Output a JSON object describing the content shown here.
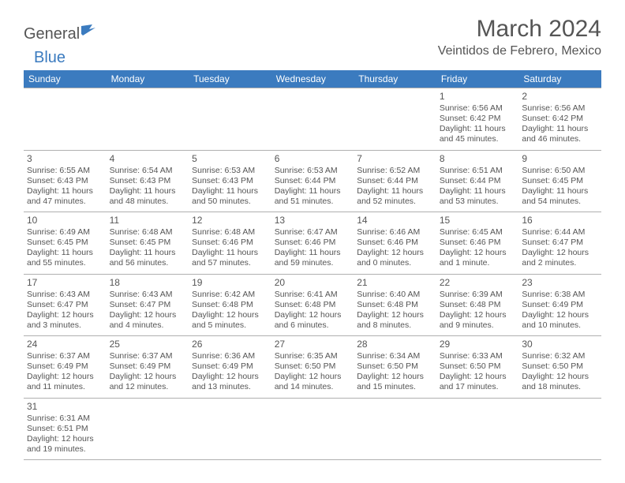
{
  "logo": {
    "part1": "General",
    "part2": "Blue"
  },
  "title": "March 2024",
  "location": "Veintidos de Febrero, Mexico",
  "colors": {
    "header_bg": "#3b7bbf",
    "header_text": "#ffffff",
    "body_text": "#555555",
    "border": "#b0b0b0",
    "background": "#ffffff",
    "logo_accent": "#3b7bbf"
  },
  "weekdays": [
    "Sunday",
    "Monday",
    "Tuesday",
    "Wednesday",
    "Thursday",
    "Friday",
    "Saturday"
  ],
  "weeks": [
    [
      null,
      null,
      null,
      null,
      null,
      {
        "day": "1",
        "sunrise": "Sunrise: 6:56 AM",
        "sunset": "Sunset: 6:42 PM",
        "daylight": "Daylight: 11 hours and 45 minutes."
      },
      {
        "day": "2",
        "sunrise": "Sunrise: 6:56 AM",
        "sunset": "Sunset: 6:42 PM",
        "daylight": "Daylight: 11 hours and 46 minutes."
      }
    ],
    [
      {
        "day": "3",
        "sunrise": "Sunrise: 6:55 AM",
        "sunset": "Sunset: 6:43 PM",
        "daylight": "Daylight: 11 hours and 47 minutes."
      },
      {
        "day": "4",
        "sunrise": "Sunrise: 6:54 AM",
        "sunset": "Sunset: 6:43 PM",
        "daylight": "Daylight: 11 hours and 48 minutes."
      },
      {
        "day": "5",
        "sunrise": "Sunrise: 6:53 AM",
        "sunset": "Sunset: 6:43 PM",
        "daylight": "Daylight: 11 hours and 50 minutes."
      },
      {
        "day": "6",
        "sunrise": "Sunrise: 6:53 AM",
        "sunset": "Sunset: 6:44 PM",
        "daylight": "Daylight: 11 hours and 51 minutes."
      },
      {
        "day": "7",
        "sunrise": "Sunrise: 6:52 AM",
        "sunset": "Sunset: 6:44 PM",
        "daylight": "Daylight: 11 hours and 52 minutes."
      },
      {
        "day": "8",
        "sunrise": "Sunrise: 6:51 AM",
        "sunset": "Sunset: 6:44 PM",
        "daylight": "Daylight: 11 hours and 53 minutes."
      },
      {
        "day": "9",
        "sunrise": "Sunrise: 6:50 AM",
        "sunset": "Sunset: 6:45 PM",
        "daylight": "Daylight: 11 hours and 54 minutes."
      }
    ],
    [
      {
        "day": "10",
        "sunrise": "Sunrise: 6:49 AM",
        "sunset": "Sunset: 6:45 PM",
        "daylight": "Daylight: 11 hours and 55 minutes."
      },
      {
        "day": "11",
        "sunrise": "Sunrise: 6:48 AM",
        "sunset": "Sunset: 6:45 PM",
        "daylight": "Daylight: 11 hours and 56 minutes."
      },
      {
        "day": "12",
        "sunrise": "Sunrise: 6:48 AM",
        "sunset": "Sunset: 6:46 PM",
        "daylight": "Daylight: 11 hours and 57 minutes."
      },
      {
        "day": "13",
        "sunrise": "Sunrise: 6:47 AM",
        "sunset": "Sunset: 6:46 PM",
        "daylight": "Daylight: 11 hours and 59 minutes."
      },
      {
        "day": "14",
        "sunrise": "Sunrise: 6:46 AM",
        "sunset": "Sunset: 6:46 PM",
        "daylight": "Daylight: 12 hours and 0 minutes."
      },
      {
        "day": "15",
        "sunrise": "Sunrise: 6:45 AM",
        "sunset": "Sunset: 6:46 PM",
        "daylight": "Daylight: 12 hours and 1 minute."
      },
      {
        "day": "16",
        "sunrise": "Sunrise: 6:44 AM",
        "sunset": "Sunset: 6:47 PM",
        "daylight": "Daylight: 12 hours and 2 minutes."
      }
    ],
    [
      {
        "day": "17",
        "sunrise": "Sunrise: 6:43 AM",
        "sunset": "Sunset: 6:47 PM",
        "daylight": "Daylight: 12 hours and 3 minutes."
      },
      {
        "day": "18",
        "sunrise": "Sunrise: 6:43 AM",
        "sunset": "Sunset: 6:47 PM",
        "daylight": "Daylight: 12 hours and 4 minutes."
      },
      {
        "day": "19",
        "sunrise": "Sunrise: 6:42 AM",
        "sunset": "Sunset: 6:48 PM",
        "daylight": "Daylight: 12 hours and 5 minutes."
      },
      {
        "day": "20",
        "sunrise": "Sunrise: 6:41 AM",
        "sunset": "Sunset: 6:48 PM",
        "daylight": "Daylight: 12 hours and 6 minutes."
      },
      {
        "day": "21",
        "sunrise": "Sunrise: 6:40 AM",
        "sunset": "Sunset: 6:48 PM",
        "daylight": "Daylight: 12 hours and 8 minutes."
      },
      {
        "day": "22",
        "sunrise": "Sunrise: 6:39 AM",
        "sunset": "Sunset: 6:48 PM",
        "daylight": "Daylight: 12 hours and 9 minutes."
      },
      {
        "day": "23",
        "sunrise": "Sunrise: 6:38 AM",
        "sunset": "Sunset: 6:49 PM",
        "daylight": "Daylight: 12 hours and 10 minutes."
      }
    ],
    [
      {
        "day": "24",
        "sunrise": "Sunrise: 6:37 AM",
        "sunset": "Sunset: 6:49 PM",
        "daylight": "Daylight: 12 hours and 11 minutes."
      },
      {
        "day": "25",
        "sunrise": "Sunrise: 6:37 AM",
        "sunset": "Sunset: 6:49 PM",
        "daylight": "Daylight: 12 hours and 12 minutes."
      },
      {
        "day": "26",
        "sunrise": "Sunrise: 6:36 AM",
        "sunset": "Sunset: 6:49 PM",
        "daylight": "Daylight: 12 hours and 13 minutes."
      },
      {
        "day": "27",
        "sunrise": "Sunrise: 6:35 AM",
        "sunset": "Sunset: 6:50 PM",
        "daylight": "Daylight: 12 hours and 14 minutes."
      },
      {
        "day": "28",
        "sunrise": "Sunrise: 6:34 AM",
        "sunset": "Sunset: 6:50 PM",
        "daylight": "Daylight: 12 hours and 15 minutes."
      },
      {
        "day": "29",
        "sunrise": "Sunrise: 6:33 AM",
        "sunset": "Sunset: 6:50 PM",
        "daylight": "Daylight: 12 hours and 17 minutes."
      },
      {
        "day": "30",
        "sunrise": "Sunrise: 6:32 AM",
        "sunset": "Sunset: 6:50 PM",
        "daylight": "Daylight: 12 hours and 18 minutes."
      }
    ],
    [
      {
        "day": "31",
        "sunrise": "Sunrise: 6:31 AM",
        "sunset": "Sunset: 6:51 PM",
        "daylight": "Daylight: 12 hours and 19 minutes."
      },
      null,
      null,
      null,
      null,
      null,
      null
    ]
  ]
}
